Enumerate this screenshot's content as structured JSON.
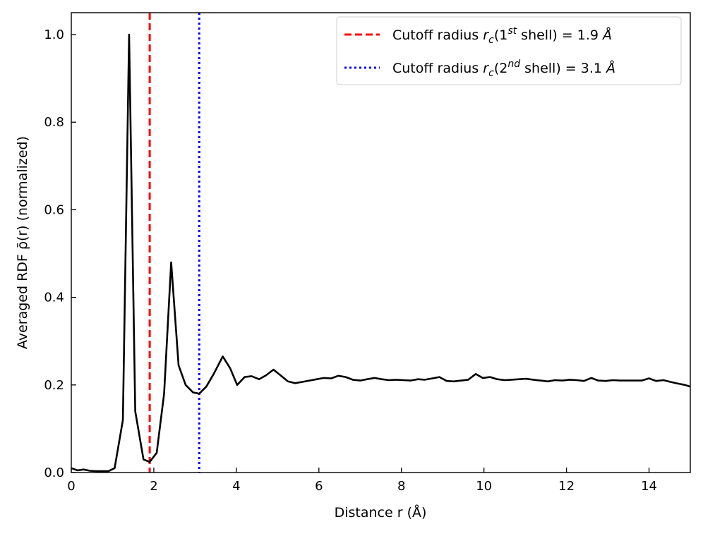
{
  "chart_data": {
    "type": "line",
    "title": "",
    "xlabel": "Distance r (Å)",
    "ylabel": "Averaged RDF ρ̄(r) (normalized)",
    "xlim": [
      0,
      15
    ],
    "ylim": [
      0,
      1.05
    ],
    "xticks": [
      0,
      2,
      4,
      6,
      8,
      10,
      12,
      14
    ],
    "yticks": [
      0.0,
      0.2,
      0.4,
      0.6,
      0.8,
      1.0
    ],
    "xtick_labels": [
      "0",
      "2",
      "4",
      "6",
      "8",
      "10",
      "12",
      "14"
    ],
    "ytick_labels": [
      "0.0",
      "0.2",
      "0.4",
      "0.6",
      "0.8",
      "1.0"
    ],
    "grid": false,
    "legend_position": "top-right",
    "series": [
      {
        "line_color": "#000000",
        "x": [
          0.0,
          0.15,
          0.3,
          0.45,
          0.6,
          0.75,
          0.9,
          1.05,
          1.25,
          1.4,
          1.55,
          1.75,
          1.9,
          2.07,
          2.25,
          2.42,
          2.6,
          2.77,
          2.95,
          3.1,
          3.27,
          3.45,
          3.67,
          3.85,
          4.02,
          4.2,
          4.37,
          4.55,
          4.72,
          4.9,
          5.07,
          5.25,
          5.42,
          5.6,
          5.77,
          5.95,
          6.12,
          6.3,
          6.47,
          6.65,
          6.82,
          7.0,
          7.17,
          7.35,
          7.52,
          7.7,
          7.87,
          8.05,
          8.22,
          8.4,
          8.57,
          8.75,
          8.92,
          9.1,
          9.27,
          9.45,
          9.62,
          9.8,
          9.97,
          10.15,
          10.32,
          10.5,
          10.67,
          10.85,
          11.02,
          11.2,
          11.37,
          11.55,
          11.72,
          11.9,
          12.07,
          12.25,
          12.42,
          12.6,
          12.77,
          12.95,
          13.12,
          13.3,
          13.47,
          13.65,
          13.82,
          14.0,
          14.17,
          14.35,
          14.52,
          14.7,
          14.87,
          15.0
        ],
        "y": [
          0.01,
          0.005,
          0.007,
          0.004,
          0.003,
          0.003,
          0.003,
          0.01,
          0.12,
          1.0,
          0.14,
          0.03,
          0.024,
          0.045,
          0.18,
          0.48,
          0.245,
          0.2,
          0.183,
          0.18,
          0.196,
          0.225,
          0.265,
          0.238,
          0.2,
          0.218,
          0.22,
          0.213,
          0.222,
          0.235,
          0.222,
          0.208,
          0.204,
          0.207,
          0.21,
          0.213,
          0.216,
          0.215,
          0.221,
          0.218,
          0.212,
          0.21,
          0.213,
          0.216,
          0.213,
          0.211,
          0.212,
          0.211,
          0.21,
          0.213,
          0.212,
          0.215,
          0.218,
          0.209,
          0.208,
          0.21,
          0.212,
          0.225,
          0.216,
          0.218,
          0.213,
          0.211,
          0.212,
          0.213,
          0.214,
          0.212,
          0.21,
          0.208,
          0.211,
          0.21,
          0.212,
          0.211,
          0.209,
          0.216,
          0.21,
          0.209,
          0.211,
          0.21,
          0.21,
          0.21,
          0.21,
          0.215,
          0.209,
          0.211,
          0.207,
          0.203,
          0.2,
          0.196
        ]
      }
    ],
    "vlines": [
      {
        "x": 1.9,
        "color": "#ff0000",
        "style": "dashed",
        "legend": {
          "prefix": "Cutoff radius ",
          "r": "r",
          "sub": "c",
          "open": "(1",
          "sup": "st",
          "close": " shell) = 1.9 ",
          "unit": "Å"
        }
      },
      {
        "x": 3.1,
        "color": "#0000ff",
        "style": "dotted",
        "legend": {
          "prefix": "Cutoff radius ",
          "r": "r",
          "sub": "c",
          "open": "(2",
          "sup": "nd",
          "close": " shell) = 3.1 ",
          "unit": "Å"
        }
      }
    ]
  }
}
